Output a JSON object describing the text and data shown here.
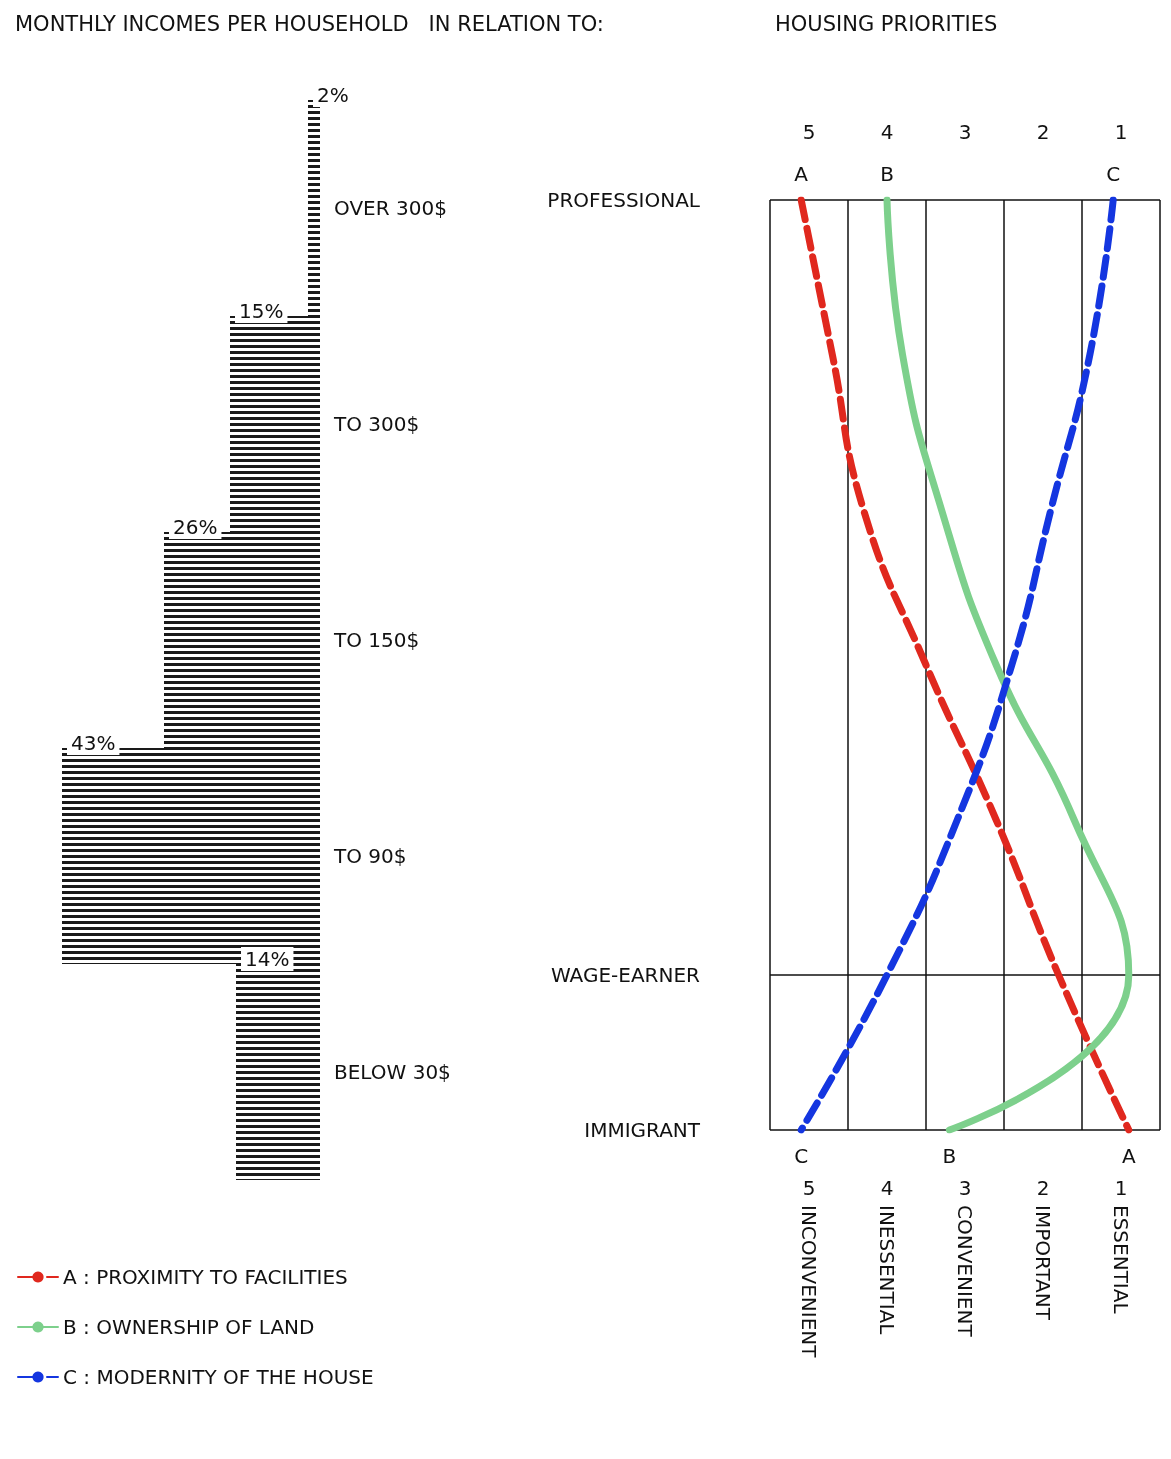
{
  "chart_data": [
    {
      "type": "bar",
      "title": "MONTHLY INCOMES PER HOUSEHOLD   IN RELATION TO:",
      "orientation": "horizontal",
      "categories": [
        "OVER 300$",
        "TO 300$",
        "TO 150$",
        "TO 90$",
        "BELOW 30$"
      ],
      "values": [
        2,
        15,
        26,
        43,
        14
      ],
      "value_labels": [
        "2%",
        "15%",
        "26%",
        "43%",
        "14%"
      ],
      "color": "#1a1a1a",
      "tick_labels": "y",
      "grid": false,
      "legend": false
    },
    {
      "type": "line",
      "title": "HOUSING PRIORITIES",
      "orientation": "horizontal",
      "categories": [
        "PROFESSIONAL",
        null,
        null,
        null,
        null,
        "WAGE-EARNER",
        "IMMIGRANT"
      ],
      "xlim": [
        5.5,
        0.5
      ],
      "xticks": [
        {
          "value": 5.5,
          "label": null
        },
        5,
        {
          "value": 4.5,
          "label": null
        },
        4,
        {
          "value": 3.5,
          "label": null
        },
        3,
        {
          "value": 2.5,
          "label": null
        },
        2,
        {
          "value": 1.5,
          "label": null
        },
        1,
        {
          "value": 0.5,
          "label": null
        }
      ],
      "x2lim": [
        5.5,
        0.5
      ],
      "x2ticks": [
        5,
        4,
        3,
        2,
        1
      ],
      "grid": true,
      "legend": "bottom left",
      "marker": "none",
      "series": [
        {
          "name": "A : PROXIMITY TO FACILITIES",
          "color": "#e0281e",
          "line_style": "dashed",
          "values": [
            5.1,
            4.7,
            4.3,
            3.5,
            2.6,
            1.8,
            0.9
          ]
        },
        {
          "name": "B : OWNERSHIP OF LAND",
          "color": "#7dd08c",
          "line_style": "solid",
          "values": [
            4.0,
            3.8,
            3.3,
            2.6,
            1.6,
            0.9,
            3.2
          ]
        },
        {
          "name": "C : MODERNITY OF THE HOUSE",
          "color": "#1436e0",
          "line_style": "dashed",
          "values": [
            1.1,
            1.4,
            1.9,
            2.4,
            3.1,
            4.0,
            5.1
          ]
        }
      ],
      "annotations": [
        "INCONVENIENT",
        "INESSENTIAL",
        "CONVENIENT",
        "IMPORTANT",
        "ESSENTIAL",
        {
          "text": "A",
          "x": 5.1,
          "y": "PROFESSIONAL"
        },
        {
          "text": "B",
          "x": 4.0,
          "y": "PROFESSIONAL"
        },
        {
          "text": "C",
          "x": 1.1,
          "y": "PROFESSIONAL"
        },
        {
          "text": "C",
          "x": 5.1,
          "y": "IMMIGRANT"
        },
        {
          "text": "B",
          "x": 3.2,
          "y": "IMMIGRANT"
        },
        {
          "text": "A",
          "x": 0.9,
          "y": "IMMIGRANT"
        }
      ]
    }
  ]
}
